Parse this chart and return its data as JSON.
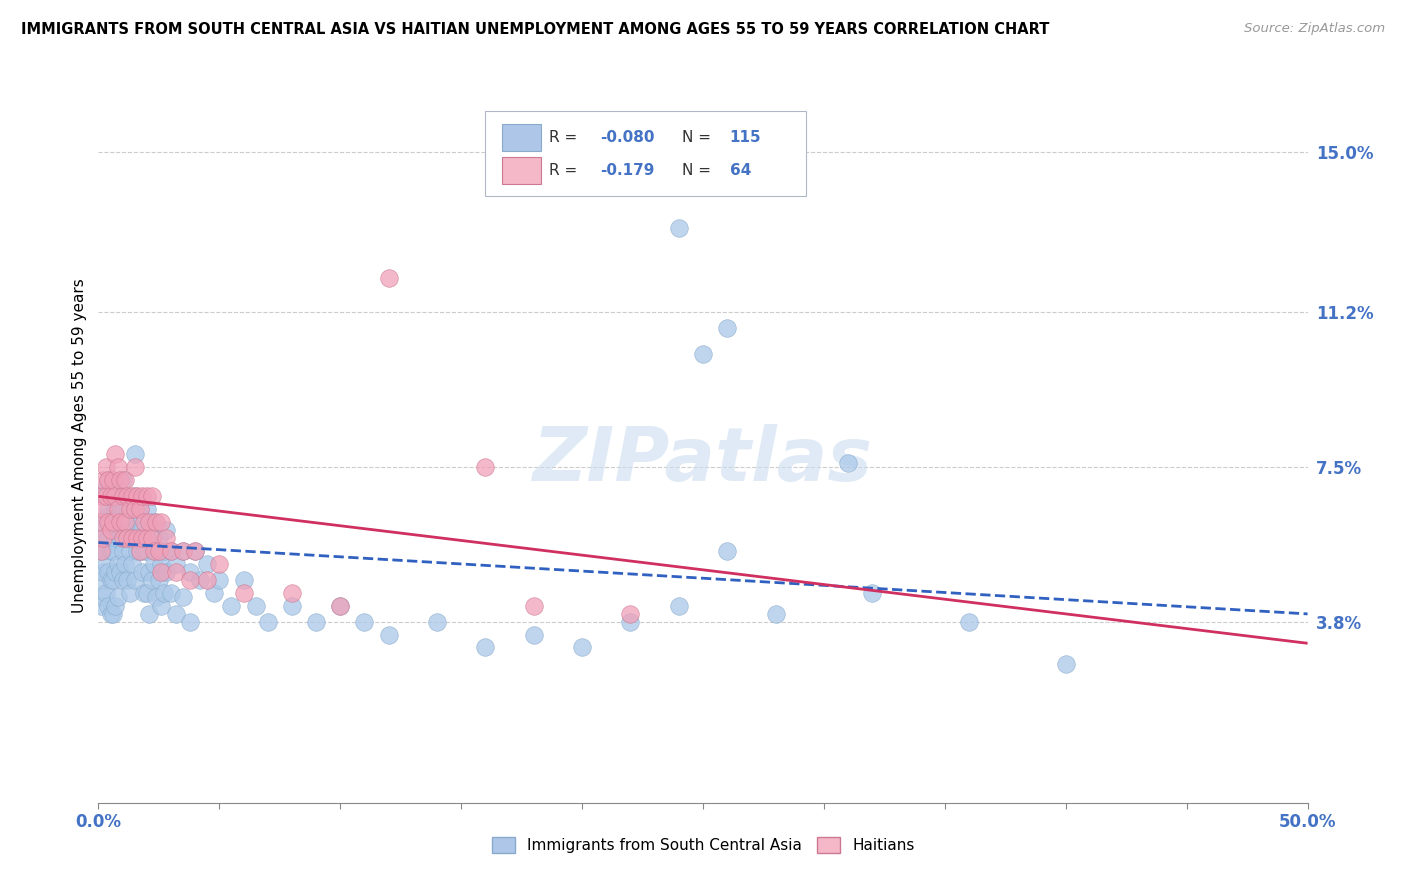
{
  "title": "IMMIGRANTS FROM SOUTH CENTRAL ASIA VS HAITIAN UNEMPLOYMENT AMONG AGES 55 TO 59 YEARS CORRELATION CHART",
  "source": "Source: ZipAtlas.com",
  "ylabel": "Unemployment Among Ages 55 to 59 years",
  "xlim": [
    0.0,
    0.5
  ],
  "ylim": [
    -0.005,
    0.165
  ],
  "xticks": [
    0.0,
    0.05,
    0.1,
    0.15,
    0.2,
    0.25,
    0.3,
    0.35,
    0.4,
    0.45,
    0.5
  ],
  "xticklabels": [
    "0.0%",
    "",
    "",
    "",
    "",
    "",
    "",
    "",
    "",
    "",
    "50.0%"
  ],
  "ytick_positions": [
    0.038,
    0.075,
    0.112,
    0.15
  ],
  "ytick_labels": [
    "3.8%",
    "7.5%",
    "11.2%",
    "15.0%"
  ],
  "R_blue": -0.08,
  "N_blue": 115,
  "R_pink": -0.179,
  "N_pink": 64,
  "blue_color": "#aac8e8",
  "pink_color": "#f0a0b8",
  "regression_blue_color": "#3060c0",
  "regression_pink_color": "#d03060",
  "watermark": "ZIPatlas",
  "blue_scatter": [
    [
      0.001,
      0.062
    ],
    [
      0.001,
      0.055
    ],
    [
      0.001,
      0.048
    ],
    [
      0.001,
      0.042
    ],
    [
      0.002,
      0.068
    ],
    [
      0.002,
      0.06
    ],
    [
      0.002,
      0.055
    ],
    [
      0.002,
      0.05
    ],
    [
      0.002,
      0.044
    ],
    [
      0.003,
      0.07
    ],
    [
      0.003,
      0.063
    ],
    [
      0.003,
      0.058
    ],
    [
      0.003,
      0.052
    ],
    [
      0.003,
      0.045
    ],
    [
      0.004,
      0.072
    ],
    [
      0.004,
      0.065
    ],
    [
      0.004,
      0.058
    ],
    [
      0.004,
      0.05
    ],
    [
      0.004,
      0.042
    ],
    [
      0.005,
      0.068
    ],
    [
      0.005,
      0.062
    ],
    [
      0.005,
      0.055
    ],
    [
      0.005,
      0.048
    ],
    [
      0.005,
      0.04
    ],
    [
      0.006,
      0.07
    ],
    [
      0.006,
      0.063
    ],
    [
      0.006,
      0.055
    ],
    [
      0.006,
      0.048
    ],
    [
      0.006,
      0.04
    ],
    [
      0.007,
      0.065
    ],
    [
      0.007,
      0.058
    ],
    [
      0.007,
      0.05
    ],
    [
      0.007,
      0.042
    ],
    [
      0.008,
      0.068
    ],
    [
      0.008,
      0.06
    ],
    [
      0.008,
      0.052
    ],
    [
      0.008,
      0.044
    ],
    [
      0.009,
      0.065
    ],
    [
      0.009,
      0.058
    ],
    [
      0.009,
      0.05
    ],
    [
      0.01,
      0.072
    ],
    [
      0.01,
      0.065
    ],
    [
      0.01,
      0.055
    ],
    [
      0.01,
      0.048
    ],
    [
      0.011,
      0.068
    ],
    [
      0.011,
      0.06
    ],
    [
      0.011,
      0.052
    ],
    [
      0.012,
      0.065
    ],
    [
      0.012,
      0.058
    ],
    [
      0.012,
      0.048
    ],
    [
      0.013,
      0.062
    ],
    [
      0.013,
      0.055
    ],
    [
      0.013,
      0.045
    ],
    [
      0.014,
      0.06
    ],
    [
      0.014,
      0.052
    ],
    [
      0.015,
      0.078
    ],
    [
      0.015,
      0.068
    ],
    [
      0.015,
      0.058
    ],
    [
      0.015,
      0.048
    ],
    [
      0.016,
      0.062
    ],
    [
      0.016,
      0.055
    ],
    [
      0.017,
      0.065
    ],
    [
      0.017,
      0.055
    ],
    [
      0.018,
      0.06
    ],
    [
      0.018,
      0.05
    ],
    [
      0.019,
      0.055
    ],
    [
      0.019,
      0.045
    ],
    [
      0.02,
      0.065
    ],
    [
      0.02,
      0.055
    ],
    [
      0.02,
      0.045
    ],
    [
      0.021,
      0.05
    ],
    [
      0.021,
      0.04
    ],
    [
      0.022,
      0.058
    ],
    [
      0.022,
      0.048
    ],
    [
      0.023,
      0.062
    ],
    [
      0.023,
      0.052
    ],
    [
      0.024,
      0.055
    ],
    [
      0.024,
      0.044
    ],
    [
      0.025,
      0.058
    ],
    [
      0.025,
      0.048
    ],
    [
      0.026,
      0.052
    ],
    [
      0.026,
      0.042
    ],
    [
      0.027,
      0.055
    ],
    [
      0.027,
      0.045
    ],
    [
      0.028,
      0.06
    ],
    [
      0.028,
      0.05
    ],
    [
      0.03,
      0.055
    ],
    [
      0.03,
      0.045
    ],
    [
      0.032,
      0.052
    ],
    [
      0.032,
      0.04
    ],
    [
      0.035,
      0.055
    ],
    [
      0.035,
      0.044
    ],
    [
      0.038,
      0.05
    ],
    [
      0.038,
      0.038
    ],
    [
      0.04,
      0.055
    ],
    [
      0.042,
      0.048
    ],
    [
      0.045,
      0.052
    ],
    [
      0.048,
      0.045
    ],
    [
      0.05,
      0.048
    ],
    [
      0.055,
      0.042
    ],
    [
      0.06,
      0.048
    ],
    [
      0.065,
      0.042
    ],
    [
      0.07,
      0.038
    ],
    [
      0.08,
      0.042
    ],
    [
      0.09,
      0.038
    ],
    [
      0.1,
      0.042
    ],
    [
      0.11,
      0.038
    ],
    [
      0.12,
      0.035
    ],
    [
      0.14,
      0.038
    ],
    [
      0.16,
      0.032
    ],
    [
      0.18,
      0.035
    ],
    [
      0.2,
      0.032
    ],
    [
      0.22,
      0.038
    ],
    [
      0.24,
      0.042
    ],
    [
      0.26,
      0.055
    ],
    [
      0.28,
      0.04
    ],
    [
      0.31,
      0.076
    ],
    [
      0.32,
      0.045
    ],
    [
      0.36,
      0.038
    ],
    [
      0.4,
      0.028
    ],
    [
      0.25,
      0.102
    ],
    [
      0.26,
      0.108
    ],
    [
      0.24,
      0.132
    ]
  ],
  "pink_scatter": [
    [
      0.001,
      0.068
    ],
    [
      0.001,
      0.062
    ],
    [
      0.001,
      0.055
    ],
    [
      0.002,
      0.072
    ],
    [
      0.002,
      0.065
    ],
    [
      0.002,
      0.058
    ],
    [
      0.003,
      0.075
    ],
    [
      0.003,
      0.068
    ],
    [
      0.004,
      0.072
    ],
    [
      0.004,
      0.062
    ],
    [
      0.005,
      0.068
    ],
    [
      0.005,
      0.06
    ],
    [
      0.006,
      0.072
    ],
    [
      0.006,
      0.062
    ],
    [
      0.007,
      0.078
    ],
    [
      0.007,
      0.068
    ],
    [
      0.008,
      0.075
    ],
    [
      0.008,
      0.065
    ],
    [
      0.009,
      0.072
    ],
    [
      0.009,
      0.062
    ],
    [
      0.01,
      0.068
    ],
    [
      0.01,
      0.058
    ],
    [
      0.011,
      0.072
    ],
    [
      0.011,
      0.062
    ],
    [
      0.012,
      0.068
    ],
    [
      0.012,
      0.058
    ],
    [
      0.013,
      0.065
    ],
    [
      0.014,
      0.068
    ],
    [
      0.014,
      0.058
    ],
    [
      0.015,
      0.075
    ],
    [
      0.015,
      0.065
    ],
    [
      0.016,
      0.068
    ],
    [
      0.016,
      0.058
    ],
    [
      0.017,
      0.065
    ],
    [
      0.017,
      0.055
    ],
    [
      0.018,
      0.068
    ],
    [
      0.018,
      0.058
    ],
    [
      0.019,
      0.062
    ],
    [
      0.02,
      0.068
    ],
    [
      0.02,
      0.058
    ],
    [
      0.021,
      0.062
    ],
    [
      0.022,
      0.068
    ],
    [
      0.022,
      0.058
    ],
    [
      0.023,
      0.055
    ],
    [
      0.024,
      0.062
    ],
    [
      0.025,
      0.055
    ],
    [
      0.026,
      0.062
    ],
    [
      0.026,
      0.05
    ],
    [
      0.028,
      0.058
    ],
    [
      0.03,
      0.055
    ],
    [
      0.032,
      0.05
    ],
    [
      0.035,
      0.055
    ],
    [
      0.038,
      0.048
    ],
    [
      0.04,
      0.055
    ],
    [
      0.045,
      0.048
    ],
    [
      0.05,
      0.052
    ],
    [
      0.06,
      0.045
    ],
    [
      0.08,
      0.045
    ],
    [
      0.1,
      0.042
    ],
    [
      0.12,
      0.12
    ],
    [
      0.16,
      0.075
    ],
    [
      0.18,
      0.042
    ],
    [
      0.22,
      0.04
    ]
  ]
}
